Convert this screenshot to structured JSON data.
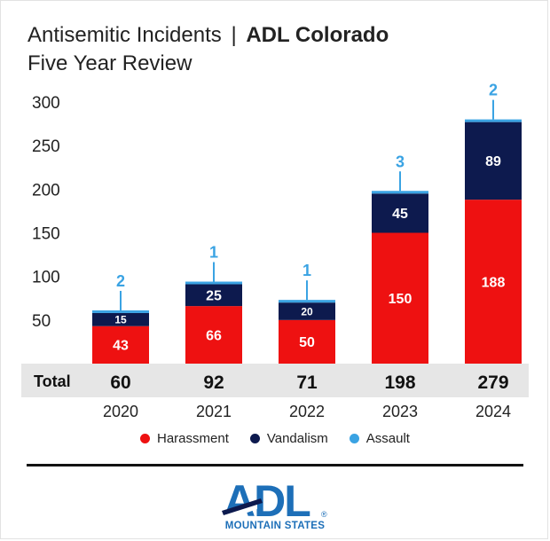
{
  "header": {
    "title_prefix": "Antisemitic Incidents",
    "title_separator": "|",
    "title_bold": "ADL Colorado",
    "subtitle": "Five Year Review"
  },
  "total_label": "Total",
  "legend": [
    {
      "label": "Harassment",
      "color": "#ee1111"
    },
    {
      "label": "Vandalism",
      "color": "#0d1a4e"
    },
    {
      "label": "Assault",
      "color": "#3aa3e3"
    }
  ],
  "logo": {
    "wordmark": "ADL",
    "tagline": "MOUNTAIN STATES",
    "registered": "®"
  },
  "chart_data": {
    "type": "bar",
    "stacked": true,
    "categories": [
      "2020",
      "2021",
      "2022",
      "2023",
      "2024"
    ],
    "series": [
      {
        "name": "Harassment",
        "color": "#ee1111",
        "values": [
          43,
          66,
          50,
          150,
          188
        ]
      },
      {
        "name": "Vandalism",
        "color": "#0d1a4e",
        "values": [
          15,
          25,
          20,
          45,
          89
        ]
      },
      {
        "name": "Assault",
        "color": "#3aa3e3",
        "values": [
          2,
          1,
          1,
          3,
          2
        ]
      }
    ],
    "totals": [
      60,
      92,
      71,
      198,
      279
    ],
    "y_ticks": [
      50,
      100,
      150,
      200,
      250,
      300
    ],
    "ylim": [
      0,
      300
    ],
    "grid": false,
    "legend_position": "bottom"
  }
}
